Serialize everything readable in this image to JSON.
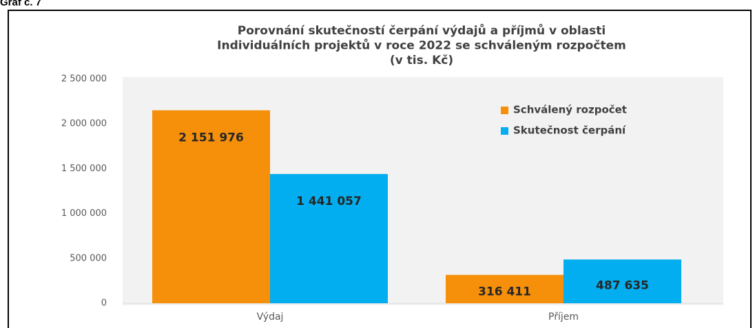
{
  "caption": "Graf č. 7",
  "chart_data": {
    "type": "bar",
    "title": [
      "Porovnání skutečností čerpání výdajů a příjmů v oblasti",
      "Individuálních projektů v roce 2022 se schváleným rozpočtem",
      "(v tis. Kč)"
    ],
    "categories": [
      "Výdaj",
      "Příjem"
    ],
    "series": [
      {
        "name": "Schválený rozpočet",
        "color": "#f68f0a",
        "values": [
          2151976,
          316411
        ],
        "value_labels": [
          "2 151 976",
          "316 411"
        ]
      },
      {
        "name": "Skutečnost čerpání",
        "color": "#02aeef",
        "values": [
          1441057,
          487635
        ],
        "value_labels": [
          "1 441 057",
          "487 635"
        ]
      }
    ],
    "ylim": [
      0,
      2500000
    ],
    "yticks": [
      0,
      {
        "value": 500000,
        "label": "500 000"
      },
      {
        "value": 1000000,
        "label": "1 000 000"
      },
      {
        "value": 1500000,
        "label": "1 500 000"
      },
      {
        "value": 2000000,
        "label": "2 000 000"
      },
      {
        "value": 2500000,
        "label": "2 500 000"
      }
    ],
    "legend": "upper right"
  }
}
